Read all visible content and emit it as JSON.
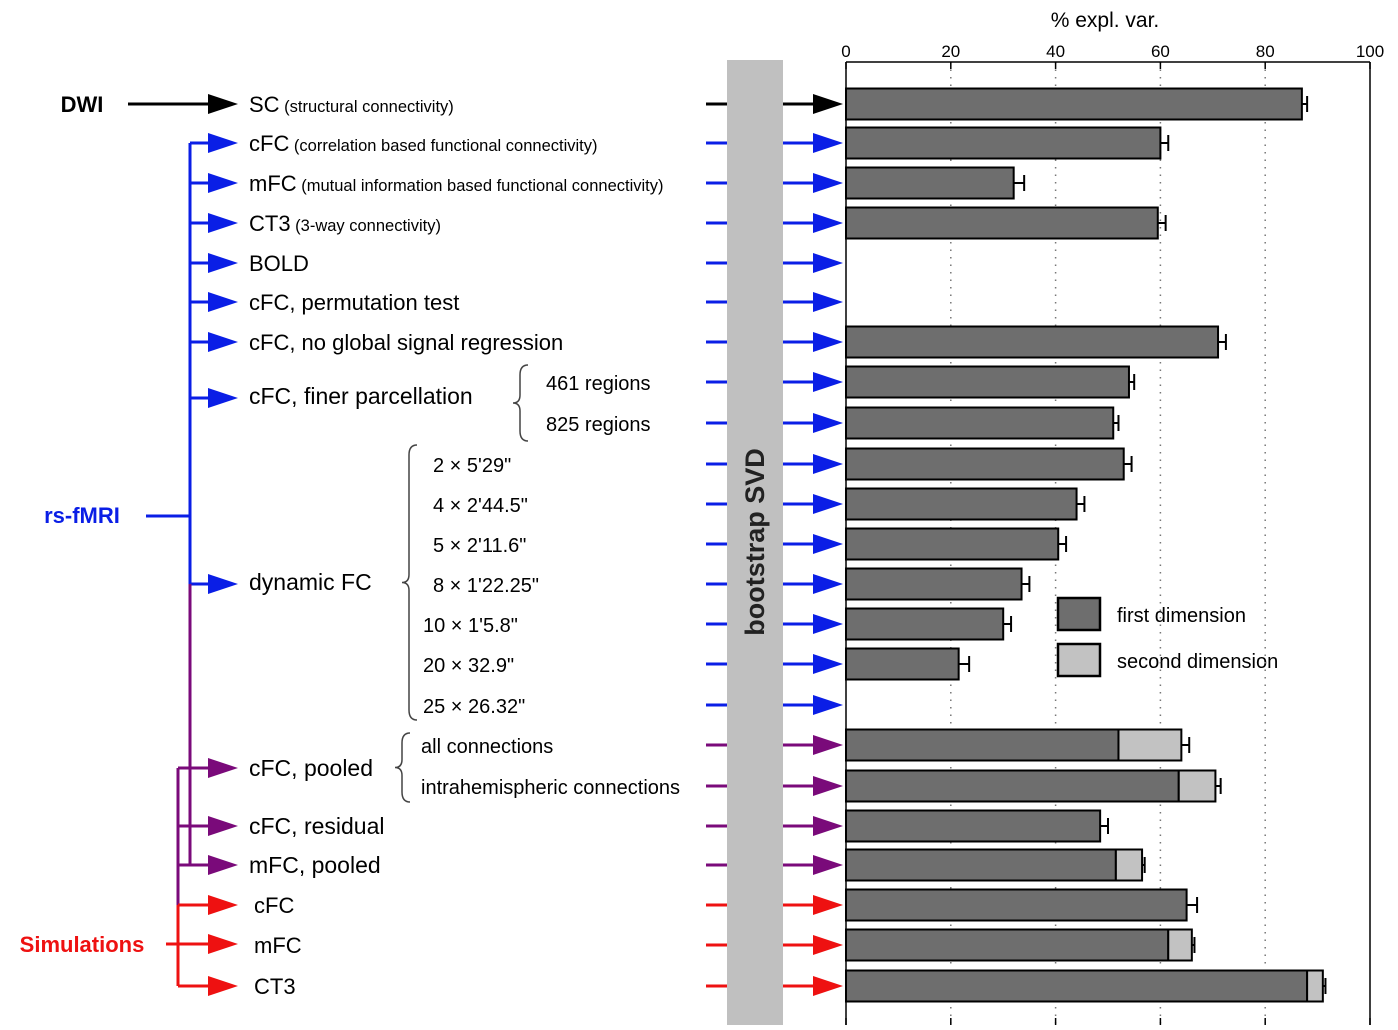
{
  "chart_data": {
    "type": "bar",
    "orientation": "horizontal",
    "xlabel": "% expl. var.",
    "xlim": [
      0,
      100
    ],
    "xticks": [
      0,
      20,
      40,
      60,
      80,
      100
    ],
    "grid": "vertical dotted",
    "legend_position": "right",
    "legend": [
      {
        "label": "first dimension",
        "color": "#6e6e6e"
      },
      {
        "label": "second dimension",
        "color": "#c2c2c2"
      }
    ],
    "bootstrap_label": "bootstrap SVD",
    "sources": [
      {
        "label": "DWI",
        "color": "#000000"
      },
      {
        "label": "rs-fMRI",
        "color": "#0a1ee6"
      },
      {
        "label": "Simulations",
        "color": "#ee1111"
      }
    ],
    "colors": {
      "dwi": "#000000",
      "fmri": "#0a1ee6",
      "pooled": "#7a0a7a",
      "sim": "#ee1111",
      "bar_first": "#6e6e6e",
      "bar_second": "#c2c2c2",
      "bootstrap_band": "#c0c0c0"
    },
    "rows": [
      {
        "label": "SC",
        "sub": "(structural connectivity)",
        "first": 87,
        "second": 0,
        "err": 1
      },
      {
        "label": "cFC",
        "sub": "(correlation based functional connectivity)",
        "first": 60,
        "second": 0,
        "err": 1.5
      },
      {
        "label": "mFC",
        "sub": "(mutual information based functional connectivity)",
        "first": 32,
        "second": 0,
        "err": 2
      },
      {
        "label": "CT3",
        "sub": "(3-way connectivity)",
        "first": 59.5,
        "second": 0,
        "err": 1.5
      },
      {
        "label": "BOLD",
        "sub": "",
        "first": 0,
        "second": 0,
        "err": 0
      },
      {
        "label": "cFC, permutation test",
        "sub": "",
        "first": 0,
        "second": 0,
        "err": 0
      },
      {
        "label": "cFC, no global signal regression",
        "sub": "",
        "first": 71,
        "second": 0,
        "err": 1.5
      },
      {
        "label": "461 regions",
        "sub": "",
        "first": 54,
        "second": 0,
        "err": 1
      },
      {
        "label": "825 regions",
        "sub": "",
        "first": 51,
        "second": 0,
        "err": 1
      },
      {
        "label": "2 × 5'29\"",
        "sub": "",
        "first": 53,
        "second": 0,
        "err": 1.5
      },
      {
        "label": "4 × 2'44.5\"",
        "sub": "",
        "first": 44,
        "second": 0,
        "err": 1.5
      },
      {
        "label": "5 × 2'11.6\"",
        "sub": "",
        "first": 40.5,
        "second": 0,
        "err": 1.5
      },
      {
        "label": "8 × 1'22.25\"",
        "sub": "",
        "first": 33.5,
        "second": 0,
        "err": 1.5
      },
      {
        "label": "10 ×  1'5.8\"",
        "sub": "",
        "first": 30,
        "second": 0,
        "err": 1.5
      },
      {
        "label": "20 ×  32.9\"",
        "sub": "",
        "first": 21.5,
        "second": 0,
        "err": 2
      },
      {
        "label": "25 × 26.32\"",
        "sub": "",
        "first": 0,
        "second": 0,
        "err": 0
      },
      {
        "label": "all connections",
        "sub": "",
        "first": 52,
        "second": 12,
        "err": 1.5
      },
      {
        "label": "intrahemispheric connections",
        "sub": "",
        "first": 63.5,
        "second": 7,
        "err": 1
      },
      {
        "label": "cFC, residual",
        "sub": "",
        "first": 48.5,
        "second": 0,
        "err": 1.5
      },
      {
        "label": "mFC, pooled",
        "sub": "",
        "first": 51.5,
        "second": 5,
        "err": 0.5
      },
      {
        "label": "cFC",
        "sub": "",
        "first": 65,
        "second": 0,
        "err": 2
      },
      {
        "label": "mFC",
        "sub": "",
        "first": 61.5,
        "second": 4.5,
        "err": 0.5
      },
      {
        "label": "CT3",
        "sub": "",
        "first": 88,
        "second": 3,
        "err": 0.5
      }
    ],
    "groups": [
      {
        "label": "cFC, finer parcellation"
      },
      {
        "label": "dynamic FC"
      },
      {
        "label": "cFC, pooled"
      }
    ]
  }
}
